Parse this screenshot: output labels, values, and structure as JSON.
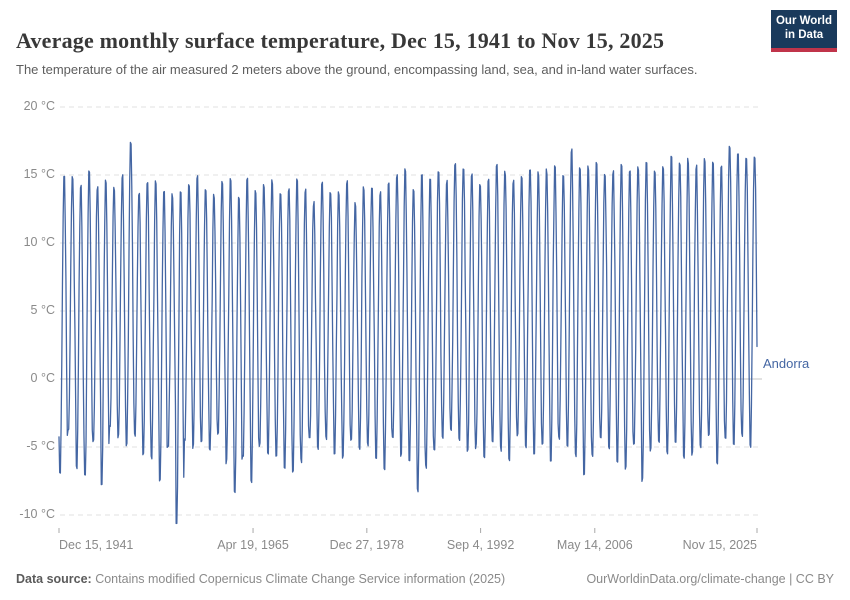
{
  "header": {
    "title": "Average monthly surface temperature, Dec 15, 1941 to Nov 15, 2025",
    "subtitle": "The temperature of the air measured 2 meters above the ground, encompassing land, sea, and in-land water surfaces.",
    "logo": {
      "line1": "Our World",
      "line2": "in Data",
      "bg_color": "#1a3a5c",
      "stripe_color": "#c0344a"
    }
  },
  "chart_data": {
    "type": "line",
    "title": "Average monthly surface temperature, Dec 15, 1941 to Nov 15, 2025",
    "subtitle": "The temperature of the air measured 2 meters above the ground, encompassing land, sea, and in-land water surfaces.",
    "unit": "°C",
    "grid": "dashed horizontal gridlines, solid line at 0 °C",
    "legend_position": "series label at right end of line",
    "y_axis": {
      "ticks": [
        -10,
        -5,
        0,
        5,
        10,
        15,
        20
      ],
      "tick_label_suffix": " °C",
      "range": [
        -12,
        20
      ]
    },
    "x_axis": {
      "start_date": "Dec 15, 1941",
      "end_date": "Nov 15, 2025",
      "ticks": [
        {
          "label": "Dec 15, 1941",
          "f": 0.0,
          "align": "left"
        },
        {
          "label": "Apr 19, 1965",
          "f": 0.278,
          "align": "center"
        },
        {
          "label": "Dec 27, 1978",
          "f": 0.441,
          "align": "center"
        },
        {
          "label": "Sep 4, 1992",
          "f": 0.604,
          "align": "center"
        },
        {
          "label": "May 14, 2006",
          "f": 0.7676,
          "align": "center"
        },
        {
          "label": "Nov 15, 2025",
          "f": 1.0,
          "align": "right"
        }
      ]
    },
    "series": [
      {
        "name": "Andorra",
        "color": "#4466a3",
        "cadence": "monthly",
        "first_month": "Dec 1941",
        "last_month": "Nov 2025",
        "first_value": -4.1,
        "last_value": 1.4,
        "peak_year_start": 1942,
        "yearly_peaks": [
          15.4,
          15.1,
          14.5,
          15.6,
          14.3,
          15.0,
          14.2,
          15.2,
          17.7,
          13.9,
          14.8,
          14.9,
          14.3,
          13.8,
          14.1,
          14.5,
          15.1,
          14.2,
          13.8,
          14.7,
          14.9,
          13.6,
          15.0,
          14.1,
          14.6,
          14.8,
          14.0,
          14.3,
          14.9,
          14.2,
          13.2,
          14.6,
          14.1,
          13.9,
          14.8,
          13.1,
          14.4,
          14.2,
          14.0,
          14.7,
          15.2,
          15.8,
          14.3,
          15.4,
          15.0,
          15.6,
          14.8,
          16.2,
          15.9,
          15.3,
          14.6,
          14.9,
          16.1,
          15.5,
          14.8,
          15.2,
          15.8,
          15.4,
          15.6,
          15.9,
          15.1,
          17.2,
          15.7,
          15.9,
          16.3,
          15.4,
          15.6,
          16.1,
          15.5,
          15.8,
          16.4,
          15.7,
          15.9,
          16.6,
          16.2,
          16.4,
          16.0,
          16.5,
          16.3,
          15.9,
          17.5,
          16.9,
          16.6,
          16.8
        ],
        "yearly_troughs": [
          -7.4,
          -4.2,
          -6.8,
          -7.5,
          -4.8,
          -8.2,
          -3.9,
          -4.6,
          -5.2,
          -4.4,
          -5.8,
          -6.2,
          -7.8,
          -5.1,
          -11.2,
          -4.7,
          -5.3,
          -4.9,
          -5.6,
          -4.3,
          -6.4,
          -8.8,
          -5.9,
          -7.8,
          -5.2,
          -5.7,
          -6.1,
          -6.9,
          -7.2,
          -6.3,
          -4.8,
          -5.4,
          -4.6,
          -5.8,
          -6.2,
          -4.9,
          -5.5,
          -5.1,
          -6.0,
          -7.1,
          -4.7,
          -5.9,
          -6.5,
          -8.5,
          -6.8,
          -5.6,
          -4.5,
          -4.2,
          -4.8,
          -5.7,
          -5.3,
          -6.1,
          -5.0,
          -5.5,
          -6.3,
          -4.4,
          -5.2,
          -5.8,
          -5.0,
          -6.2,
          -4.6,
          -5.4,
          -5.9,
          -7.4,
          -6.0,
          -4.7,
          -5.3,
          -6.6,
          -6.9,
          -5.1,
          -7.8,
          -5.6,
          -4.9,
          -5.7,
          -4.8,
          -6.1,
          -5.9,
          -5.4,
          -4.3,
          -6.7,
          -4.6,
          -5.0,
          -4.4,
          -5.2
        ]
      }
    ]
  },
  "footer": {
    "source_label": "Data source:",
    "source_text": " Contains modified Copernicus Climate Change Service information (2025)",
    "link_text": "OurWorldinData.org/climate-change | CC BY"
  }
}
